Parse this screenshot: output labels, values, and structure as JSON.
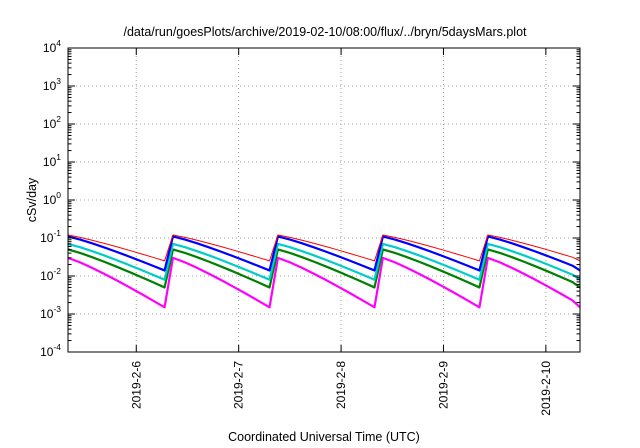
{
  "chart_data": {
    "type": "line",
    "title": "/data/run/goesPlots/archive/2019-02-10/08:00/flux/../bryn/5daysMars.plot",
    "xlabel": "Coordinated Universal Time (UTC)",
    "ylabel": "cSv/day",
    "yscale": "log",
    "ylim": [
      0.0001,
      10000
    ],
    "y_ticks": [
      {
        "base": "10",
        "exp": "4"
      },
      {
        "base": "10",
        "exp": "3"
      },
      {
        "base": "10",
        "exp": "2"
      },
      {
        "base": "10",
        "exp": "1"
      },
      {
        "base": "10",
        "exp": "0"
      },
      {
        "base": "10",
        "exp": "-1"
      },
      {
        "base": "10",
        "exp": "-2"
      },
      {
        "base": "10",
        "exp": "-3"
      },
      {
        "base": "10",
        "exp": "-4"
      }
    ],
    "xlim": [
      "2019-02-05 08:00",
      "2019-02-10 08:00"
    ],
    "x_ticks": [
      "2019-2-6",
      "2019-2-7",
      "2019-2-8",
      "2019-2-9",
      "2019-2-10"
    ],
    "grid": true,
    "legend": "none",
    "period_hours": 24.6,
    "n_periods": 49,
    "series": [
      {
        "color": "#ff0000",
        "peak_at_start_of_period": 0.12,
        "minimum_at_end_of_period": 0.025
      },
      {
        "color": "#0000ff",
        "peak_at_start_of_period": 0.11,
        "minimum_at_end_of_period": 0.014
      },
      {
        "color": "#00cccc",
        "peak_at_start_of_period": 0.07,
        "minimum_at_end_of_period": 0.008
      },
      {
        "color": "#008000",
        "peak_at_start_of_period": 0.05,
        "minimum_at_end_of_period": 0.005
      },
      {
        "color": "#ff00ff",
        "peak_at_start_of_period": 0.03,
        "minimum_at_end_of_period": 0.0015
      }
    ],
    "line_colors": [
      "#ff0000",
      "#0000ff",
      "#00cccc",
      "#008000",
      "#ff00ff"
    ]
  }
}
